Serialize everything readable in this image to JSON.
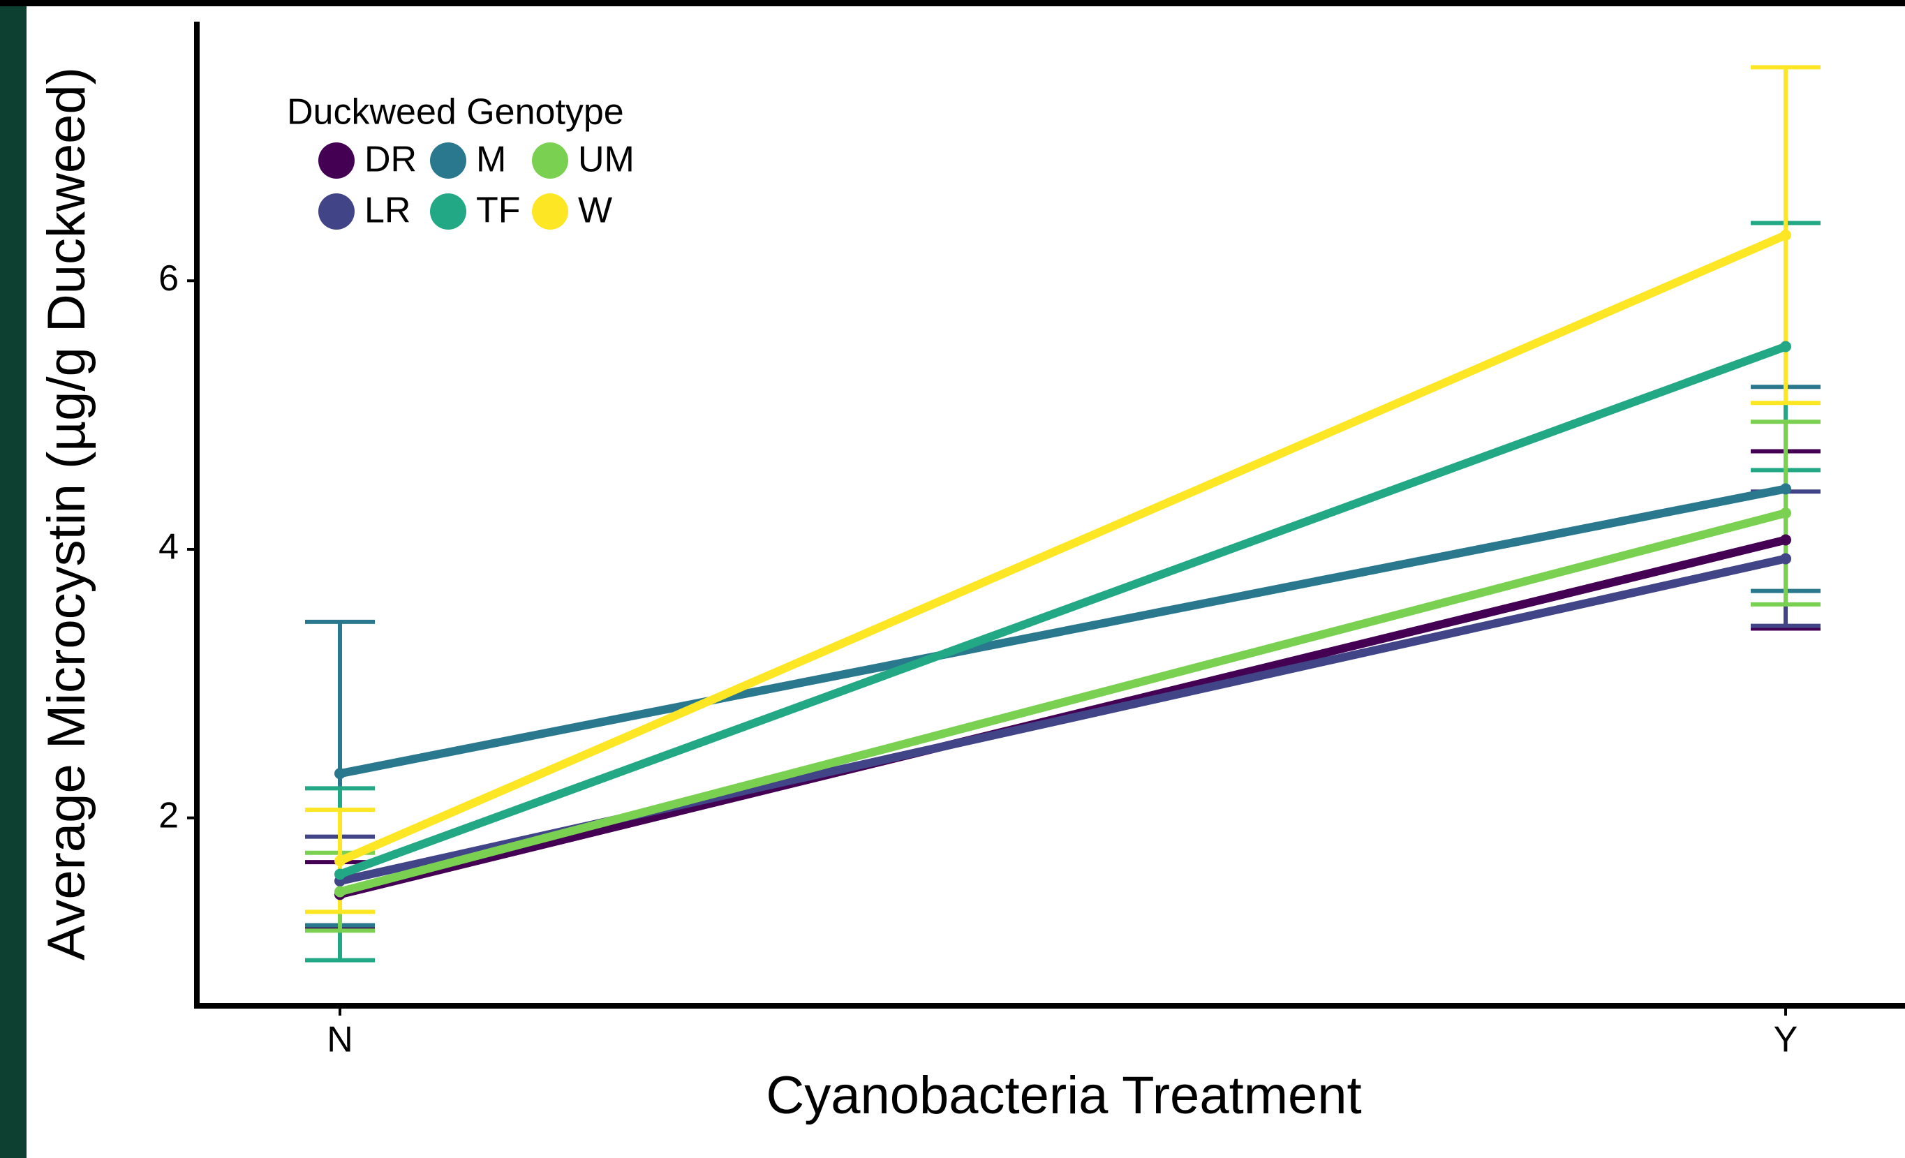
{
  "chart_data": {
    "type": "line",
    "x_label": "Cyanobacteria Treatment",
    "y_label": "Average Microcystin (µg/g Duckweed)",
    "legend_title": "Duckweed Genotype",
    "categories": [
      "N",
      "Y"
    ],
    "ylim": [
      0.6,
      7.93
    ],
    "yticks": [
      2,
      4,
      6
    ],
    "series": [
      {
        "name": "DR",
        "color": "#440154",
        "values": [
          1.43,
          4.07
        ],
        "errors": [
          0.24,
          0.66
        ]
      },
      {
        "name": "LR",
        "color": "#414487",
        "values": [
          1.53,
          3.93
        ],
        "errors": [
          0.33,
          0.5
        ]
      },
      {
        "name": "M",
        "color": "#2a788e",
        "values": [
          2.33,
          4.45
        ],
        "errors": [
          1.13,
          0.76
        ]
      },
      {
        "name": "TF",
        "color": "#22a884",
        "values": [
          1.58,
          5.51
        ],
        "errors": [
          0.64,
          0.92
        ]
      },
      {
        "name": "UM",
        "color": "#7ad151",
        "values": [
          1.45,
          4.27
        ],
        "errors": [
          0.29,
          0.68
        ]
      },
      {
        "name": "W",
        "color": "#fde725",
        "values": [
          1.68,
          6.34
        ],
        "errors": [
          0.38,
          1.25
        ]
      }
    ]
  }
}
